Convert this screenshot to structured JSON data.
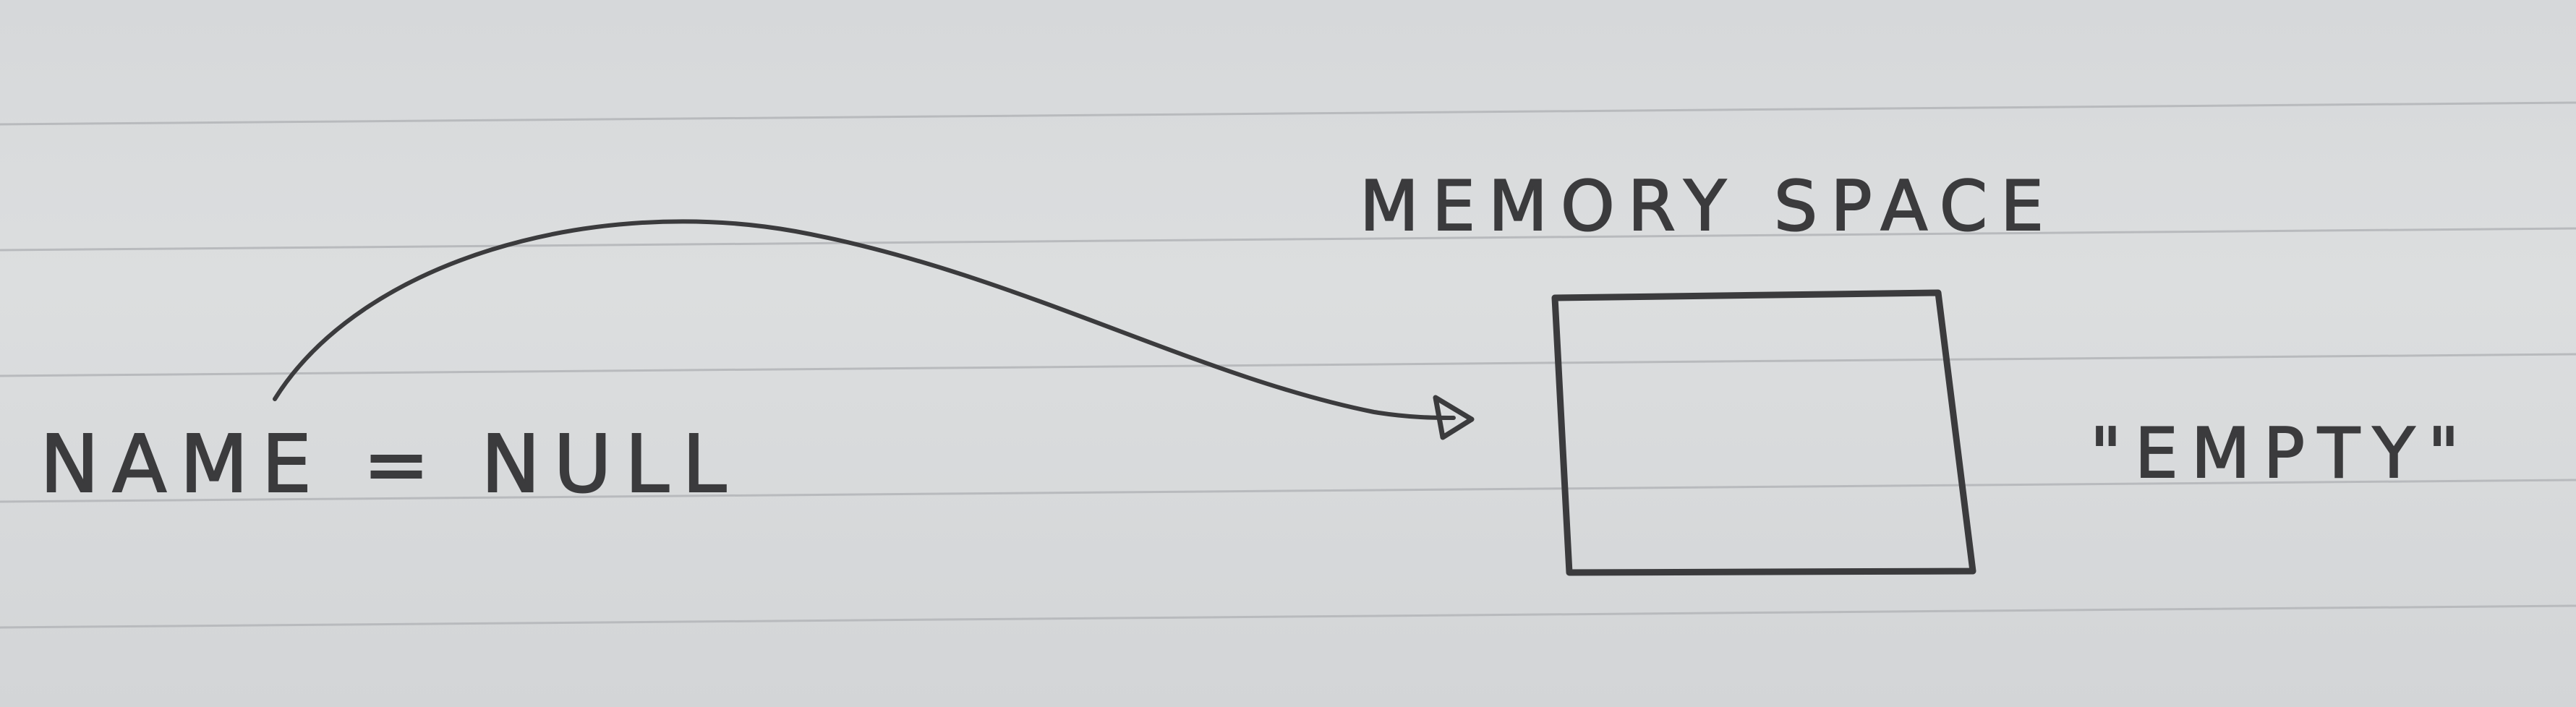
{
  "diagram": {
    "variable_label": "NAME = NULL",
    "memory_label": "MEMORY SPACE",
    "box_note": "\"EMPTY\""
  },
  "colors": {
    "paper": "#d9dbdc",
    "rule_line": "#b8babd",
    "ink": "#3b3b3d"
  }
}
